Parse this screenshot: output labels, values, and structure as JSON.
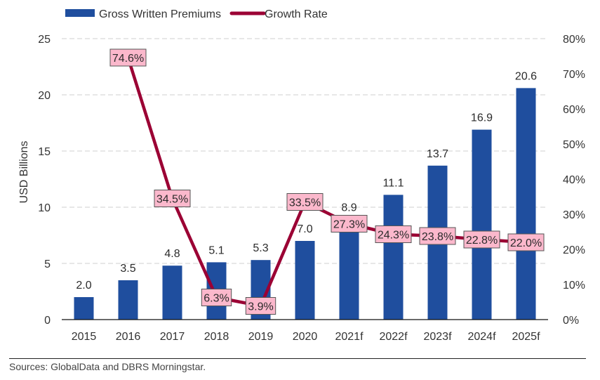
{
  "chart_data": {
    "type": "bar+line",
    "title": "",
    "categories": [
      "2015",
      "2016",
      "2017",
      "2018",
      "2019",
      "2020",
      "2021f",
      "2022f",
      "2023f",
      "2024f",
      "2025f"
    ],
    "series": [
      {
        "name": "Gross Written Premiums",
        "type": "bar",
        "axis": "left",
        "color": "#1f4e9e",
        "values": [
          2.0,
          3.5,
          4.8,
          5.1,
          5.3,
          7.0,
          8.9,
          11.1,
          13.7,
          16.9,
          20.6
        ],
        "labels": [
          "2.0",
          "3.5",
          "4.8",
          "5.1",
          "5.3",
          "7.0",
          "8.9",
          "11.1",
          "13.7",
          "16.9",
          "20.6"
        ]
      },
      {
        "name": "Growth Rate",
        "type": "line",
        "axis": "right",
        "color": "#9b0034",
        "label_bg": "#fbb8cc",
        "values": [
          null,
          74.6,
          34.5,
          6.3,
          3.9,
          33.5,
          27.3,
          24.3,
          23.8,
          22.8,
          22.0
        ],
        "labels": [
          null,
          "74.6%",
          "34.5%",
          "6.3%",
          "3.9%",
          "33.5%",
          "27.3%",
          "24.3%",
          "23.8%",
          "22.8%",
          "22.0%"
        ]
      }
    ],
    "left_axis": {
      "label": "USD Billions",
      "ylim": [
        0,
        25
      ],
      "ticks": [
        0,
        5,
        10,
        15,
        20,
        25
      ],
      "tick_labels": [
        "0",
        "5",
        "10",
        "15",
        "20",
        "25"
      ]
    },
    "right_axis": {
      "label": "",
      "ylim": [
        0,
        80
      ],
      "ticks": [
        0,
        10,
        20,
        30,
        40,
        50,
        60,
        70,
        80
      ],
      "tick_labels": [
        "0%",
        "10%",
        "20%",
        "30%",
        "40%",
        "50%",
        "60%",
        "70%",
        "80%"
      ]
    },
    "grid": true,
    "grid_style": "dashed",
    "legend": {
      "position": "top-left",
      "entries": [
        "Gross Written Premiums",
        "Growth Rate"
      ]
    },
    "source": "Sources: GlobalData and DBRS Morningstar."
  }
}
